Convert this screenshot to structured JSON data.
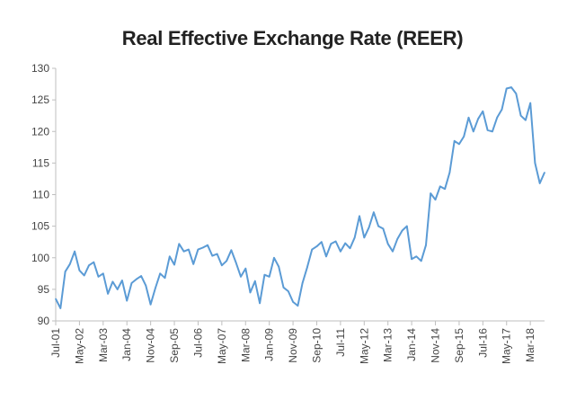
{
  "chart_data": {
    "type": "line",
    "title": "Real Effective Exchange Rate (REER)",
    "xlabel": "",
    "ylabel": "",
    "ylim": [
      90,
      130
    ],
    "yticks": [
      90,
      95,
      100,
      105,
      110,
      115,
      120,
      125,
      130
    ],
    "xticks": [
      "Jul-01",
      "May-02",
      "Mar-03",
      "Jan-04",
      "Nov-04",
      "Sep-05",
      "Jul-06",
      "May-07",
      "Mar-08",
      "Jan-09",
      "Nov-09",
      "Sep-10",
      "Jul-11",
      "May-12",
      "Mar-13",
      "Jan-14",
      "Nov-14",
      "Sep-15",
      "Jul-16",
      "May-17",
      "Mar-18"
    ],
    "grid": false,
    "legend": "none",
    "line_color": "#5b9bd5",
    "series": [
      {
        "points": [
          [
            "2001-07",
            93.5
          ],
          [
            "2001-09",
            92.0
          ],
          [
            "2001-11",
            97.8
          ],
          [
            "2002-01",
            99.0
          ],
          [
            "2002-03",
            101.0
          ],
          [
            "2002-05",
            98.0
          ],
          [
            "2002-07",
            97.2
          ],
          [
            "2002-09",
            98.8
          ],
          [
            "2002-11",
            99.3
          ],
          [
            "2003-01",
            97.0
          ],
          [
            "2003-03",
            97.5
          ],
          [
            "2003-05",
            94.3
          ],
          [
            "2003-07",
            96.2
          ],
          [
            "2003-09",
            95.0
          ],
          [
            "2003-11",
            96.4
          ],
          [
            "2004-01",
            93.2
          ],
          [
            "2004-03",
            96.0
          ],
          [
            "2004-05",
            96.6
          ],
          [
            "2004-07",
            97.1
          ],
          [
            "2004-09",
            95.6
          ],
          [
            "2004-11",
            92.6
          ],
          [
            "2005-01",
            95.2
          ],
          [
            "2005-03",
            97.5
          ],
          [
            "2005-05",
            96.8
          ],
          [
            "2005-07",
            100.2
          ],
          [
            "2005-09",
            98.9
          ],
          [
            "2005-11",
            102.2
          ],
          [
            "2006-01",
            101.0
          ],
          [
            "2006-03",
            101.3
          ],
          [
            "2006-05",
            99.0
          ],
          [
            "2006-07",
            101.3
          ],
          [
            "2006-09",
            101.6
          ],
          [
            "2006-11",
            102.0
          ],
          [
            "2007-01",
            100.3
          ],
          [
            "2007-03",
            100.6
          ],
          [
            "2007-05",
            98.8
          ],
          [
            "2007-07",
            99.5
          ],
          [
            "2007-09",
            101.2
          ],
          [
            "2007-11",
            99.2
          ],
          [
            "2008-01",
            97.0
          ],
          [
            "2008-03",
            98.3
          ],
          [
            "2008-05",
            94.5
          ],
          [
            "2008-07",
            96.3
          ],
          [
            "2008-09",
            92.8
          ],
          [
            "2008-11",
            97.3
          ],
          [
            "2009-01",
            97.0
          ],
          [
            "2009-03",
            100.0
          ],
          [
            "2009-05",
            98.6
          ],
          [
            "2009-07",
            95.3
          ],
          [
            "2009-09",
            94.7
          ],
          [
            "2009-11",
            93.0
          ],
          [
            "2010-01",
            92.4
          ],
          [
            "2010-03",
            96.0
          ],
          [
            "2010-05",
            98.5
          ],
          [
            "2010-07",
            101.3
          ],
          [
            "2010-09",
            101.8
          ],
          [
            "2010-11",
            102.5
          ],
          [
            "2011-01",
            100.2
          ],
          [
            "2011-03",
            102.2
          ],
          [
            "2011-05",
            102.6
          ],
          [
            "2011-07",
            101.0
          ],
          [
            "2011-09",
            102.3
          ],
          [
            "2011-11",
            101.5
          ],
          [
            "2012-01",
            103.2
          ],
          [
            "2012-03",
            106.6
          ],
          [
            "2012-05",
            103.2
          ],
          [
            "2012-07",
            104.8
          ],
          [
            "2012-09",
            107.2
          ],
          [
            "2012-11",
            105.0
          ],
          [
            "2013-01",
            104.6
          ],
          [
            "2013-03",
            102.2
          ],
          [
            "2013-05",
            101.0
          ],
          [
            "2013-07",
            103.0
          ],
          [
            "2013-09",
            104.3
          ],
          [
            "2013-11",
            105.0
          ],
          [
            "2014-01",
            99.8
          ],
          [
            "2014-03",
            100.2
          ],
          [
            "2014-05",
            99.5
          ],
          [
            "2014-07",
            102.0
          ],
          [
            "2014-09",
            110.2
          ],
          [
            "2014-11",
            109.2
          ],
          [
            "2015-01",
            111.3
          ],
          [
            "2015-03",
            110.9
          ],
          [
            "2015-05",
            113.5
          ],
          [
            "2015-07",
            118.5
          ],
          [
            "2015-09",
            118.0
          ],
          [
            "2015-11",
            119.2
          ],
          [
            "2016-01",
            122.2
          ],
          [
            "2016-03",
            120.0
          ],
          [
            "2016-05",
            122.0
          ],
          [
            "2016-07",
            123.2
          ],
          [
            "2016-09",
            120.2
          ],
          [
            "2016-11",
            120.0
          ],
          [
            "2017-01",
            122.2
          ],
          [
            "2017-03",
            123.5
          ],
          [
            "2017-05",
            126.8
          ],
          [
            "2017-07",
            127.0
          ],
          [
            "2017-09",
            126.0
          ],
          [
            "2017-11",
            122.5
          ],
          [
            "2018-01",
            121.8
          ],
          [
            "2018-03",
            124.5
          ],
          [
            "2018-05",
            115.0
          ],
          [
            "2018-07",
            111.8
          ],
          [
            "2018-09",
            113.5
          ]
        ]
      }
    ]
  }
}
